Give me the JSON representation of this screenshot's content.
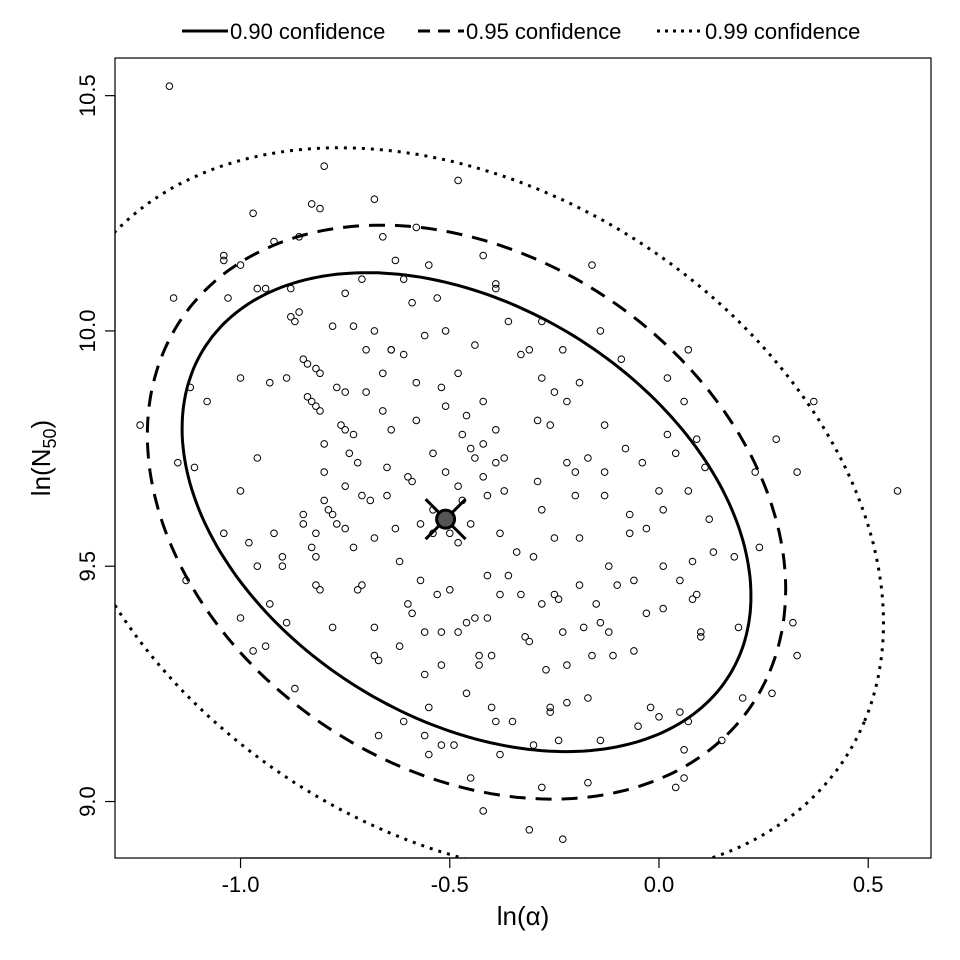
{
  "chart_data": {
    "type": "scatter",
    "xlabel": "ln(α)",
    "ylabel_base": "ln(N",
    "ylabel_sub": "50",
    "ylabel_close": ")",
    "xlim": [
      -1.3,
      0.65
    ],
    "ylim": [
      8.88,
      10.58
    ],
    "x_ticks": [
      -1.0,
      -0.5,
      0.0,
      0.5
    ],
    "x_tick_labels": [
      "-1.0",
      "-0.5",
      "0.0",
      "0.5"
    ],
    "y_ticks": [
      9.0,
      9.5,
      10.0,
      10.5
    ],
    "y_tick_labels": [
      "9.0",
      "9.5",
      "10.0",
      "10.5"
    ],
    "grid": false,
    "legend_position": "top-outside",
    "estimate": {
      "x": -0.51,
      "y": 9.6
    },
    "ellipses": [
      {
        "name": "0.90 confidence",
        "style": "solid",
        "center": [
          -0.46,
          9.615
        ],
        "a": 0.72,
        "b": 0.45,
        "angle_deg": -25
      },
      {
        "name": "0.95 confidence",
        "style": "dashed",
        "center": [
          -0.46,
          9.615
        ],
        "a": 0.8,
        "b": 0.56,
        "angle_deg": -25
      },
      {
        "name": "0.99 confidence",
        "style": "dotted",
        "center": [
          -0.46,
          9.615
        ],
        "a": 1.05,
        "b": 0.7,
        "angle_deg": -25
      }
    ],
    "points": [
      [
        -1.17,
        10.52
      ],
      [
        -1.24,
        9.8
      ],
      [
        -1.16,
        10.07
      ],
      [
        -1.15,
        9.72
      ],
      [
        -1.13,
        9.47
      ],
      [
        -1.11,
        9.71
      ],
      [
        -1.04,
        10.16
      ],
      [
        -1.04,
        10.15
      ],
      [
        -1.03,
        10.07
      ],
      [
        -1.04,
        9.57
      ],
      [
        -1.0,
        9.9
      ],
      [
        -1.0,
        9.66
      ],
      [
        -0.98,
        9.55
      ],
      [
        -1.0,
        9.39
      ],
      [
        -0.97,
        9.32
      ],
      [
        -0.96,
        9.73
      ],
      [
        -0.96,
        9.5
      ],
      [
        -0.97,
        10.25
      ],
      [
        -0.93,
        9.89
      ],
      [
        -0.92,
        9.57
      ],
      [
        -0.9,
        9.52
      ],
      [
        -0.9,
        9.5
      ],
      [
        -0.88,
        10.09
      ],
      [
        -0.88,
        10.03
      ],
      [
        -0.87,
        10.02
      ],
      [
        -0.86,
        10.2
      ],
      [
        -0.85,
        9.94
      ],
      [
        -0.85,
        9.61
      ],
      [
        -0.85,
        9.59
      ],
      [
        -0.84,
        9.93
      ],
      [
        -0.84,
        9.86
      ],
      [
        -0.83,
        9.85
      ],
      [
        -0.82,
        9.92
      ],
      [
        -0.82,
        9.84
      ],
      [
        -0.82,
        9.57
      ],
      [
        -0.83,
        9.54
      ],
      [
        -0.82,
        9.52
      ],
      [
        -0.81,
        9.91
      ],
      [
        -0.81,
        9.83
      ],
      [
        -0.8,
        9.76
      ],
      [
        -0.82,
        9.46
      ],
      [
        -0.81,
        9.45
      ],
      [
        -0.8,
        9.7
      ],
      [
        -0.8,
        9.64
      ],
      [
        -0.79,
        9.62
      ],
      [
        -0.78,
        9.61
      ],
      [
        -0.78,
        9.37
      ],
      [
        -0.83,
        10.27
      ],
      [
        -0.81,
        10.26
      ],
      [
        -0.8,
        10.35
      ],
      [
        -0.77,
        9.88
      ],
      [
        -0.77,
        9.59
      ],
      [
        -0.76,
        9.8
      ],
      [
        -0.75,
        9.87
      ],
      [
        -0.75,
        9.79
      ],
      [
        -0.75,
        9.67
      ],
      [
        -0.75,
        9.58
      ],
      [
        -0.74,
        9.74
      ],
      [
        -0.73,
        9.78
      ],
      [
        -0.73,
        9.54
      ],
      [
        -0.72,
        9.72
      ],
      [
        -0.71,
        9.65
      ],
      [
        -0.71,
        9.46
      ],
      [
        -0.72,
        9.45
      ],
      [
        -0.7,
        9.96
      ],
      [
        -0.7,
        9.87
      ],
      [
        -0.69,
        9.64
      ],
      [
        -0.68,
        9.56
      ],
      [
        -0.68,
        9.37
      ],
      [
        -0.68,
        9.31
      ],
      [
        -0.67,
        9.3
      ],
      [
        -0.67,
        9.14
      ],
      [
        -0.66,
        9.91
      ],
      [
        -0.66,
        9.83
      ],
      [
        -0.65,
        9.71
      ],
      [
        -0.65,
        9.65
      ],
      [
        -0.64,
        9.79
      ],
      [
        -0.63,
        9.58
      ],
      [
        -0.62,
        9.51
      ],
      [
        -0.62,
        9.33
      ],
      [
        -0.61,
        9.17
      ],
      [
        -0.61,
        9.95
      ],
      [
        -0.6,
        9.69
      ],
      [
        -0.6,
        9.42
      ],
      [
        -0.59,
        9.68
      ],
      [
        -0.59,
        9.4
      ],
      [
        -0.58,
        9.89
      ],
      [
        -0.58,
        9.81
      ],
      [
        -0.57,
        9.59
      ],
      [
        -0.57,
        9.47
      ],
      [
        -0.56,
        9.36
      ],
      [
        -0.56,
        9.27
      ],
      [
        -0.55,
        9.2
      ],
      [
        -0.54,
        9.74
      ],
      [
        -0.54,
        9.62
      ],
      [
        -0.54,
        9.57
      ],
      [
        -0.53,
        9.44
      ],
      [
        -0.52,
        9.88
      ],
      [
        -0.52,
        9.36
      ],
      [
        -0.52,
        9.29
      ],
      [
        -0.51,
        9.84
      ],
      [
        -0.51,
        9.7
      ],
      [
        -0.5,
        9.57
      ],
      [
        -0.5,
        9.45
      ],
      [
        -0.49,
        9.12
      ],
      [
        -0.48,
        9.67
      ],
      [
        -0.48,
        9.55
      ],
      [
        -0.48,
        9.36
      ],
      [
        -0.47,
        9.78
      ],
      [
        -0.47,
        9.64
      ],
      [
        -0.46,
        9.23
      ],
      [
        -0.46,
        9.38
      ],
      [
        -0.45,
        9.75
      ],
      [
        -0.45,
        9.59
      ],
      [
        -0.44,
        9.73
      ],
      [
        -0.44,
        9.39
      ],
      [
        -0.43,
        9.29
      ],
      [
        -0.43,
        9.31
      ],
      [
        -0.42,
        9.85
      ],
      [
        -0.42,
        9.69
      ],
      [
        -0.41,
        9.65
      ],
      [
        -0.41,
        9.48
      ],
      [
        -0.41,
        9.39
      ],
      [
        -0.4,
        9.31
      ],
      [
        -0.4,
        9.2
      ],
      [
        -0.39,
        9.17
      ],
      [
        -0.39,
        9.79
      ],
      [
        -0.38,
        9.57
      ],
      [
        -0.38,
        9.44
      ],
      [
        -0.37,
        9.66
      ],
      [
        -0.36,
        9.48
      ],
      [
        -0.35,
        9.17
      ],
      [
        -0.34,
        9.53
      ],
      [
        -0.33,
        9.44
      ],
      [
        -0.32,
        9.35
      ],
      [
        -0.31,
        9.34
      ],
      [
        -0.3,
        9.12
      ],
      [
        -0.3,
        9.52
      ],
      [
        -0.29,
        9.81
      ],
      [
        -0.29,
        9.68
      ],
      [
        -0.28,
        9.62
      ],
      [
        -0.28,
        9.42
      ],
      [
        -0.27,
        9.28
      ],
      [
        -0.26,
        9.19
      ],
      [
        -0.26,
        9.2
      ],
      [
        -0.25,
        9.56
      ],
      [
        -0.25,
        9.44
      ],
      [
        -0.24,
        9.13
      ],
      [
        -0.24,
        9.43
      ],
      [
        -0.23,
        9.36
      ],
      [
        -0.22,
        9.29
      ],
      [
        -0.22,
        9.21
      ],
      [
        -0.2,
        9.7
      ],
      [
        -0.2,
        9.65
      ],
      [
        -0.19,
        9.56
      ],
      [
        -0.19,
        9.46
      ],
      [
        -0.18,
        9.37
      ],
      [
        -0.17,
        9.22
      ],
      [
        -0.16,
        9.31
      ],
      [
        -0.15,
        9.42
      ],
      [
        -0.14,
        9.38
      ],
      [
        -0.14,
        9.13
      ],
      [
        -0.13,
        9.7
      ],
      [
        -0.13,
        9.65
      ],
      [
        -0.12,
        9.5
      ],
      [
        -0.12,
        9.36
      ],
      [
        -0.11,
        9.31
      ],
      [
        -0.1,
        9.46
      ],
      [
        -0.09,
        9.94
      ],
      [
        -0.08,
        9.75
      ],
      [
        -0.07,
        9.61
      ],
      [
        -0.07,
        9.57
      ],
      [
        -0.06,
        9.47
      ],
      [
        -0.06,
        9.32
      ],
      [
        -0.05,
        9.16
      ],
      [
        -0.04,
        9.72
      ],
      [
        -0.03,
        9.58
      ],
      [
        -0.03,
        9.4
      ],
      [
        -0.02,
        9.2
      ],
      [
        0.0,
        9.18
      ],
      [
        0.0,
        9.66
      ],
      [
        0.01,
        9.62
      ],
      [
        0.01,
        9.5
      ],
      [
        0.01,
        9.41
      ],
      [
        0.02,
        9.78
      ],
      [
        0.04,
        9.74
      ],
      [
        0.05,
        9.47
      ],
      [
        0.05,
        9.19
      ],
      [
        0.06,
        9.11
      ],
      [
        0.07,
        9.17
      ],
      [
        0.07,
        9.96
      ],
      [
        0.07,
        9.66
      ],
      [
        0.08,
        9.51
      ],
      [
        0.08,
        9.43
      ],
      [
        0.09,
        9.44
      ],
      [
        0.1,
        9.35
      ],
      [
        0.1,
        9.36
      ],
      [
        0.15,
        9.13
      ],
      [
        0.18,
        9.52
      ],
      [
        0.19,
        9.37
      ],
      [
        0.2,
        9.22
      ],
      [
        0.23,
        9.7
      ],
      [
        0.24,
        9.54
      ],
      [
        0.27,
        9.23
      ],
      [
        0.28,
        9.77
      ],
      [
        0.32,
        9.38
      ],
      [
        0.33,
        9.31
      ],
      [
        0.33,
        9.7
      ],
      [
        0.37,
        9.85
      ],
      [
        0.57,
        9.66
      ],
      [
        -0.48,
        10.32
      ],
      [
        -0.42,
        10.16
      ],
      [
        -0.39,
        10.09
      ],
      [
        -0.39,
        10.1
      ],
      [
        -0.36,
        10.02
      ],
      [
        -0.33,
        9.95
      ],
      [
        -0.42,
        9.76
      ],
      [
        -0.48,
        9.91
      ],
      [
        -0.44,
        9.97
      ],
      [
        -0.46,
        9.82
      ],
      [
        -0.37,
        9.73
      ],
      [
        -0.39,
        9.72
      ],
      [
        -0.53,
        10.07
      ],
      [
        -0.55,
        10.14
      ],
      [
        -0.59,
        10.06
      ],
      [
        -0.58,
        10.22
      ],
      [
        -0.63,
        10.15
      ],
      [
        -0.66,
        10.2
      ],
      [
        -0.68,
        10.28
      ],
      [
        -0.61,
        10.11
      ],
      [
        -0.56,
        9.99
      ],
      [
        -0.51,
        10.0
      ],
      [
        -0.68,
        10.0
      ],
      [
        -0.73,
        10.01
      ],
      [
        -0.71,
        10.11
      ],
      [
        -0.75,
        10.08
      ],
      [
        -0.78,
        10.01
      ],
      [
        -0.64,
        9.96
      ],
      [
        -0.64,
        9.96
      ],
      [
        -0.23,
        9.96
      ],
      [
        -0.25,
        9.87
      ],
      [
        -0.28,
        9.9
      ],
      [
        -0.26,
        9.8
      ],
      [
        -0.22,
        9.85
      ],
      [
        -0.17,
        9.73
      ],
      [
        -0.13,
        9.8
      ],
      [
        -0.16,
        10.14
      ],
      [
        -0.14,
        10.0
      ],
      [
        -0.31,
        9.96
      ],
      [
        -0.28,
        10.02
      ],
      [
        -0.19,
        9.89
      ],
      [
        -0.22,
        9.72
      ],
      [
        -0.45,
        9.05
      ],
      [
        -0.42,
        8.98
      ],
      [
        -0.31,
        8.94
      ],
      [
        -0.28,
        9.03
      ],
      [
        -0.23,
        8.92
      ],
      [
        0.04,
        9.03
      ],
      [
        -0.56,
        9.14
      ],
      [
        -0.52,
        9.12
      ],
      [
        -0.55,
        9.1
      ],
      [
        0.06,
        9.05
      ],
      [
        -0.17,
        9.04
      ],
      [
        -0.38,
        9.1
      ],
      [
        -0.86,
        10.04
      ],
      [
        -0.89,
        9.9
      ],
      [
        -0.94,
        10.09
      ],
      [
        -0.96,
        10.09
      ],
      [
        -0.92,
        10.19
      ],
      [
        -1.0,
        10.14
      ],
      [
        -1.08,
        9.85
      ],
      [
        -1.12,
        9.88
      ],
      [
        -0.93,
        9.42
      ],
      [
        -0.89,
        9.38
      ],
      [
        -0.94,
        9.33
      ],
      [
        -0.87,
        9.24
      ],
      [
        0.12,
        9.6
      ],
      [
        0.11,
        9.71
      ],
      [
        0.06,
        9.85
      ],
      [
        0.02,
        9.9
      ],
      [
        0.09,
        9.77
      ],
      [
        0.13,
        9.53
      ]
    ]
  },
  "legend": {
    "items": [
      {
        "label": "0.90 confidence",
        "style": "solid"
      },
      {
        "label": "0.95 confidence",
        "style": "dashed"
      },
      {
        "label": "0.99 confidence",
        "style": "dotted"
      }
    ]
  }
}
